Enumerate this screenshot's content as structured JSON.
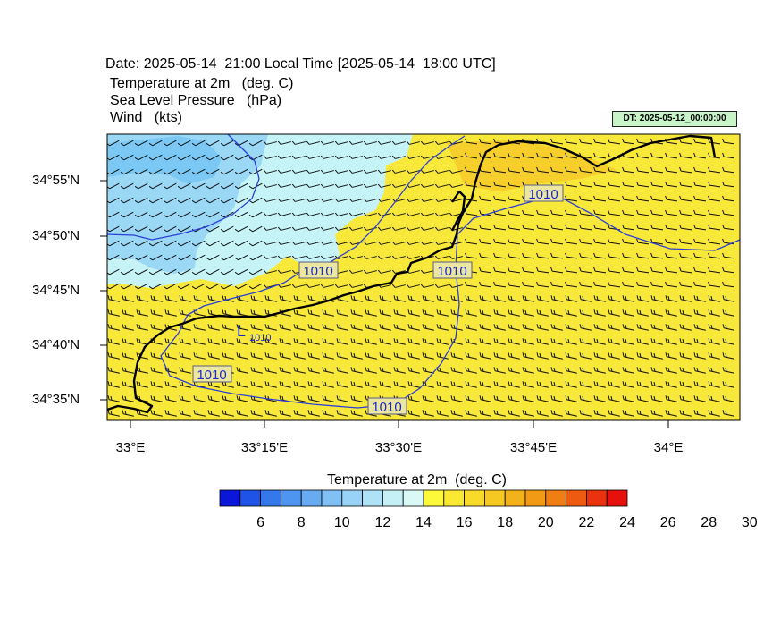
{
  "header": {
    "date_line": "Date: 2025-05-14  21:00 Local Time [2025-05-14  18:00 UTC]",
    "field1": "Temperature at 2m   (deg. C)",
    "field2": "Sea Level Pressure   (hPa)",
    "field3": "Wind   (kts)",
    "dt_badge": "DT: 2025-05-12_00:00:00"
  },
  "map": {
    "lat_labels": [
      "34°55'N",
      "34°50'N",
      "34°45'N",
      "34°40'N",
      "34°35'N"
    ],
    "lon_labels": [
      "33°E",
      "33°15'E",
      "33°30'E",
      "33°45'E",
      "34°E"
    ],
    "isobar_labels": [
      "1010",
      "1010",
      "1010",
      "1010",
      "1010"
    ],
    "low_symbol": "L",
    "low_value": "1010",
    "colors": {
      "cool_dark": "#7cc8f4",
      "cool_mid": "#9ad8f6",
      "cool_light": "#c6f4f6",
      "warm": "#f8e83a",
      "warm_dark": "#f6cf2c",
      "isobar": "#2b3fd6",
      "coast": "#000000"
    }
  },
  "colorbar": {
    "title": "Temperature at 2m  (deg. C)",
    "labels": [
      "6",
      "8",
      "10",
      "12",
      "14",
      "16",
      "18",
      "20",
      "22",
      "24",
      "26",
      "28",
      "30"
    ],
    "colors": [
      "#0a16d8",
      "#1f52e6",
      "#3478ec",
      "#4d95f0",
      "#67abf2",
      "#80c0f4",
      "#98d2f6",
      "#aee2f6",
      "#c4f0f6",
      "#daf8f6",
      "#fcf83a",
      "#fae832",
      "#f8da2a",
      "#f6c822",
      "#f4b21a",
      "#f29a16",
      "#f07e12",
      "#ee5a10",
      "#ea320e",
      "#e6100c"
    ]
  }
}
